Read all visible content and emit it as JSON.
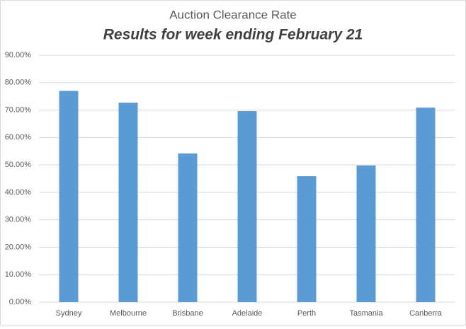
{
  "chart_data": {
    "type": "bar",
    "title": "Auction Clearance Rate",
    "subtitle": "Results for week ending February 21",
    "categories": [
      "Sydney",
      "Melbourne",
      "Brisbane",
      "Adelaide",
      "Perth",
      "Tasmania",
      "Canberra"
    ],
    "values": [
      77,
      72.7,
      54.2,
      69.6,
      45.9,
      49.8,
      70.9
    ],
    "color": "#5b9bd5",
    "ylim": [
      0,
      90
    ],
    "yticks": [
      {
        "value": 0,
        "label": "0.00%"
      },
      {
        "value": 10,
        "label": "10.00%"
      },
      {
        "value": 20,
        "label": "20.00%"
      },
      {
        "value": 30,
        "label": "30.00%"
      },
      {
        "value": 40,
        "label": "40.00%"
      },
      {
        "value": 50,
        "label": "50.00%"
      },
      {
        "value": 60,
        "label": "60.00%"
      },
      {
        "value": 70,
        "label": "70.00%"
      },
      {
        "value": 80,
        "label": "80.00%"
      },
      {
        "value": 90,
        "label": "90.00%"
      }
    ],
    "grid": true
  }
}
